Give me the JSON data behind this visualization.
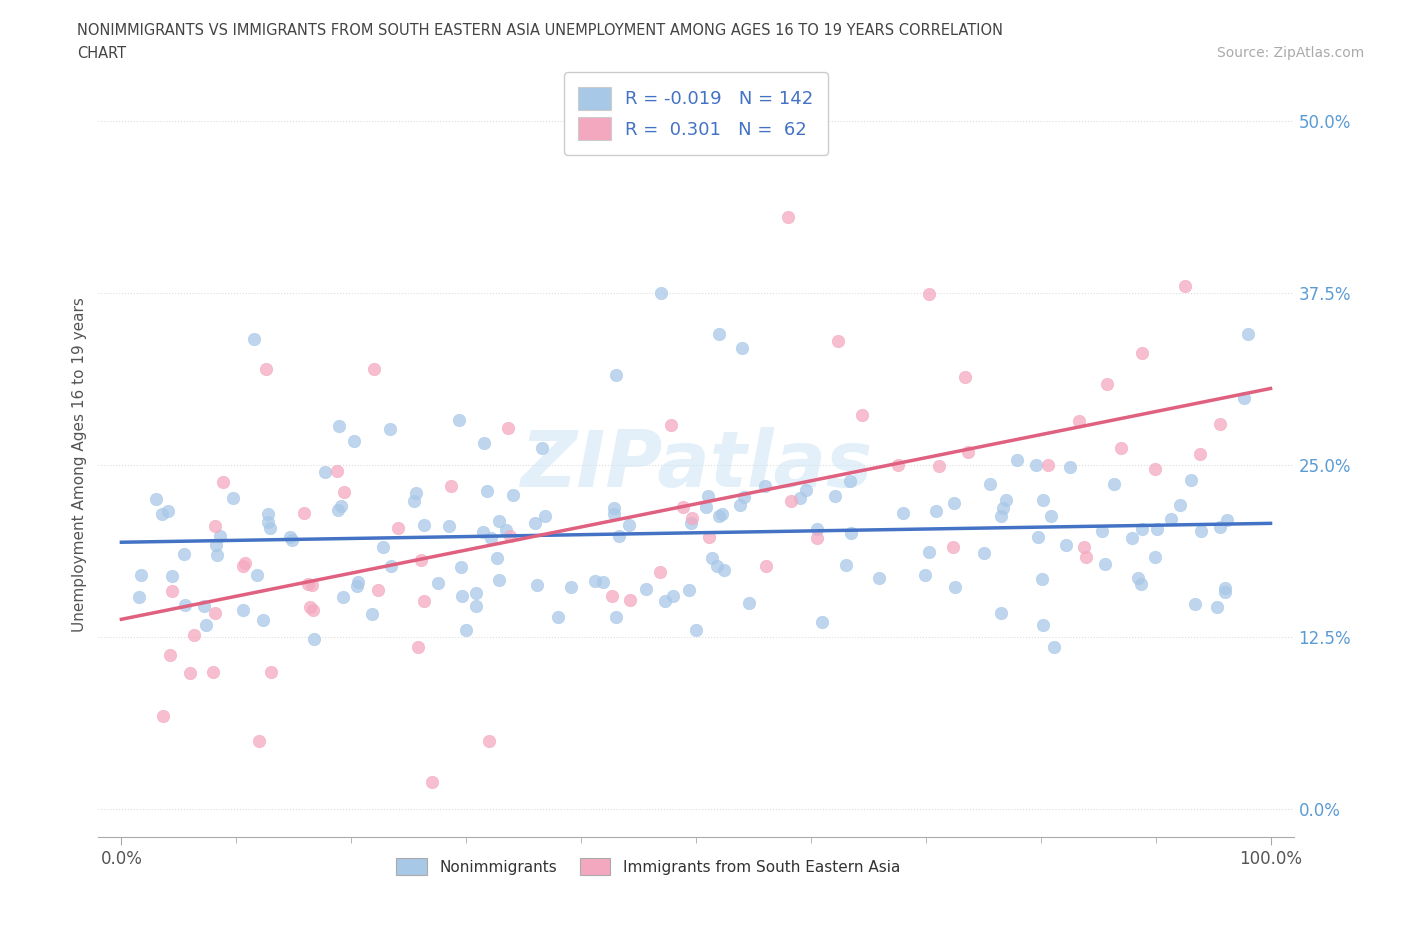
{
  "title_line1": "NONIMMIGRANTS VS IMMIGRANTS FROM SOUTH EASTERN ASIA UNEMPLOYMENT AMONG AGES 16 TO 19 YEARS CORRELATION",
  "title_line2": "CHART",
  "source_text": "Source: ZipAtlas.com",
  "ylabel": "Unemployment Among Ages 16 to 19 years",
  "xlim": [
    -0.02,
    1.02
  ],
  "ylim": [
    -0.02,
    0.52
  ],
  "ytick_values": [
    0.0,
    0.125,
    0.25,
    0.375,
    0.5
  ],
  "xtick_values": [
    0.0,
    1.0
  ],
  "legend_entries": [
    "Nonimmigrants",
    "Immigrants from South Eastern Asia"
  ],
  "R_nonimm": -0.019,
  "N_nonimm": 142,
  "R_imm": 0.301,
  "N_imm": 62,
  "color_nonimm": "#a8c8e8",
  "color_imm": "#f4a8c0",
  "line_color_nonimm": "#4472c4",
  "line_color_imm": "#e06080",
  "watermark": "ZIPatlas",
  "background_color": "#ffffff",
  "title_color": "#444444",
  "source_color": "#aaaaaa",
  "ytick_color": "#5b9bd5",
  "grid_color": "#dddddd",
  "dot_size": 80,
  "dot_alpha": 0.75
}
